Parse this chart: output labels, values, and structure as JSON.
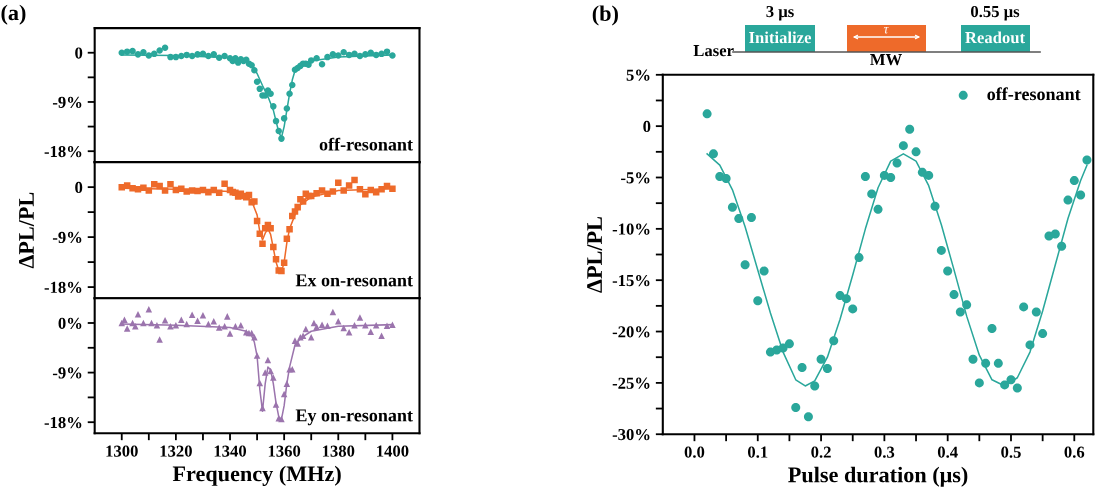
{
  "chart_data": [
    {
      "type": "scatter",
      "title": "(a)",
      "annotations": [
        "off-resonant"
      ],
      "xlim": [
        1290,
        1410
      ],
      "ylim": [
        -20,
        4.5
      ],
      "tick_labels": "y",
      "xticks": [
        1300,
        {
          "value": 1310,
          "label": null
        },
        1320,
        {
          "value": 1330,
          "label": null
        },
        1340,
        {
          "value": 1350,
          "label": null
        },
        1360,
        {
          "value": 1370,
          "label": null
        },
        1380,
        {
          "value": 1390,
          "label": null
        },
        1400
      ],
      "yticks": [
        0,
        {
          "value": -4.5,
          "label": null
        },
        {
          "value": -9,
          "label": "-9%"
        },
        {
          "value": -13.5,
          "label": null
        },
        {
          "value": -18,
          "label": "-18%"
        }
      ],
      "series": [
        {
          "marker": "circle",
          "color": "#2aa79b",
          "x": [
            1300,
            1302,
            1304,
            1306,
            1308,
            1310,
            1312,
            1314,
            1316,
            1318,
            1320,
            1322,
            1324,
            1326,
            1328,
            1330,
            1332,
            1334,
            1336,
            1338,
            1340,
            1341,
            1342,
            1343,
            1344,
            1345,
            1346,
            1347,
            1348,
            1349,
            1350,
            1351,
            1352,
            1353,
            1354,
            1355,
            1356,
            1357,
            1358,
            1359,
            1360,
            1361,
            1362,
            1363,
            1364,
            1365,
            1366,
            1367,
            1368,
            1369,
            1370,
            1372,
            1374,
            1376,
            1378,
            1380,
            1382,
            1384,
            1386,
            1388,
            1390,
            1392,
            1394,
            1396,
            1398,
            1400
          ],
          "values": [
            0,
            0.2,
            0.3,
            -0.3,
            0.1,
            -0.5,
            -0.2,
            0.4,
            0.9,
            -0.8,
            -0.8,
            -0.6,
            -0.4,
            -0.6,
            -0.3,
            -0.2,
            -0.6,
            -0.3,
            -0.9,
            -0.6,
            -1.0,
            -1.5,
            -1.0,
            -1.8,
            -1.2,
            -1.5,
            -1.3,
            -2.0,
            -2.3,
            -3.2,
            -5.3,
            -6.6,
            -7.8,
            -7.8,
            -6.9,
            -7.5,
            -9.8,
            -12.5,
            -14.3,
            -15.7,
            -12.0,
            -10.2,
            -7.5,
            -5.9,
            -3.1,
            -2.8,
            -2.4,
            -2.0,
            -2.0,
            -2.2,
            -1.4,
            -1.0,
            -2.1,
            -0.8,
            -0.3,
            -0.5,
            0.1,
            -0.4,
            -0.2,
            -0.6,
            -0.3,
            0,
            -0.4,
            -0.2,
            0.2,
            -0.5
          ]
        },
        {
          "type": "line",
          "marker": "none",
          "line_style": "solid",
          "color": "#2aa79b",
          "x": [
            1300,
            1320,
            1340,
            1345,
            1348,
            1350,
            1352,
            1354,
            1356,
            1357,
            1358,
            1359,
            1360,
            1361,
            1362,
            1363,
            1364,
            1366,
            1370,
            1380,
            1400
          ],
          "values": [
            -0.4,
            -0.5,
            -0.9,
            -1.5,
            -2.3,
            -3.8,
            -6,
            -8,
            -10.5,
            -12.5,
            -14.5,
            -15.5,
            -13.5,
            -10.5,
            -7.5,
            -5,
            -3.3,
            -2.3,
            -1.5,
            -0.8,
            -0.4
          ]
        }
      ]
    },
    {
      "type": "scatter",
      "ylabel": "ΔPL/PL",
      "annotations": [
        "Ex on-resonant"
      ],
      "xlim": [
        1290,
        1410
      ],
      "ylim": [
        -20,
        4.5
      ],
      "tick_labels": "y",
      "xticks": [
        1300,
        {
          "value": 1310,
          "label": null
        },
        1320,
        {
          "value": 1330,
          "label": null
        },
        1340,
        {
          "value": 1350,
          "label": null
        },
        1360,
        {
          "value": 1370,
          "label": null
        },
        1380,
        {
          "value": 1390,
          "label": null
        },
        1400
      ],
      "yticks": [
        0,
        {
          "value": -4.5,
          "label": null
        },
        {
          "value": -9,
          "label": "-9%"
        },
        {
          "value": -13.5,
          "label": null
        },
        {
          "value": -18,
          "label": "-18%"
        }
      ],
      "series": [
        {
          "marker": "square",
          "color": "#ee6a2a",
          "x": [
            1300,
            1302,
            1304,
            1306,
            1308,
            1310,
            1312,
            1314,
            1316,
            1318,
            1320,
            1322,
            1324,
            1326,
            1328,
            1330,
            1332,
            1334,
            1336,
            1338,
            1340,
            1341,
            1342,
            1343,
            1344,
            1345,
            1346,
            1347,
            1348,
            1349,
            1350,
            1351,
            1352,
            1353,
            1354,
            1355,
            1356,
            1357,
            1358,
            1359,
            1360,
            1361,
            1362,
            1363,
            1364,
            1365,
            1366,
            1367,
            1368,
            1369,
            1370,
            1372,
            1374,
            1376,
            1378,
            1380,
            1382,
            1384,
            1386,
            1388,
            1390,
            1392,
            1394,
            1396,
            1398,
            1400
          ],
          "values": [
            0,
            0.3,
            -0.2,
            -0.4,
            -0.1,
            -0.6,
            0.5,
            0.2,
            -0.6,
            0.5,
            -0.5,
            -0.3,
            -0.8,
            -0.6,
            -0.7,
            -0.5,
            -0.9,
            -0.5,
            -1.0,
            0.6,
            -0.5,
            -0.9,
            -1.0,
            -1.7,
            -1.2,
            -1.6,
            -1.8,
            -1.4,
            -2.7,
            -2.6,
            -6.1,
            -8.4,
            -10.2,
            -7.4,
            -6.8,
            -7.4,
            -10.8,
            -13.0,
            -15.0,
            -15.1,
            -13.6,
            -9.3,
            -7.6,
            -5.2,
            -4.4,
            -3.6,
            -2.2,
            -2.6,
            -1.2,
            -1.6,
            -1.6,
            -1.1,
            -0.6,
            -1.2,
            -0.8,
            0.8,
            -0.6,
            0.3,
            1.3,
            -0.4,
            -1.3,
            -0.5,
            -0.9,
            -0.4,
            0.2,
            -0.3
          ]
        },
        {
          "type": "line",
          "marker": "none",
          "line_style": "solid",
          "color": "#ee6a2a",
          "x": [
            1300,
            1320,
            1340,
            1346,
            1348,
            1350,
            1351,
            1352,
            1353,
            1354,
            1355,
            1356,
            1357,
            1358,
            1359,
            1360,
            1361,
            1362,
            1364,
            1366,
            1370,
            1380,
            1400
          ],
          "values": [
            -0.2,
            -0.4,
            -0.8,
            -1.5,
            -2.5,
            -5,
            -8,
            -9.5,
            -8.3,
            -7.5,
            -8.5,
            -11,
            -13.5,
            -15,
            -15.3,
            -13.5,
            -10,
            -7.5,
            -5,
            -3.2,
            -1.8,
            -0.6,
            -0.3
          ]
        }
      ]
    },
    {
      "type": "scatter",
      "xlabel": "Frequency (MHz)",
      "annotations": [
        "Ey on-resonant"
      ],
      "xlim": [
        1290,
        1410
      ],
      "ylim": [
        -20,
        4.5
      ],
      "xticks": [
        1300,
        {
          "value": 1310,
          "label": null
        },
        1320,
        {
          "value": 1330,
          "label": null
        },
        1340,
        {
          "value": 1350,
          "label": null
        },
        1360,
        {
          "value": 1370,
          "label": null
        },
        1380,
        {
          "value": 1390,
          "label": null
        },
        1400
      ],
      "yticks": [
        {
          "value": 0,
          "label": "0%"
        },
        {
          "value": -4.5,
          "label": null
        },
        {
          "value": -9,
          "label": "-9%"
        },
        {
          "value": -13.5,
          "label": null
        },
        {
          "value": -18,
          "label": "-18%"
        }
      ],
      "series": [
        {
          "marker": "triangle",
          "color": "#9b74ad",
          "x": [
            1300,
            1301,
            1302,
            1304,
            1305,
            1306,
            1308,
            1310,
            1311,
            1313,
            1314,
            1316,
            1318,
            1320,
            1322,
            1324,
            1326,
            1328,
            1330,
            1332,
            1334,
            1336,
            1338,
            1339,
            1340,
            1342,
            1344,
            1346,
            1347,
            1348,
            1349,
            1350,
            1351,
            1352,
            1353,
            1354,
            1355,
            1356,
            1357,
            1358,
            1359,
            1360,
            1361,
            1362,
            1363,
            1364,
            1365,
            1366,
            1367,
            1368,
            1370,
            1371,
            1372,
            1374,
            1376,
            1378,
            1380,
            1382,
            1384,
            1386,
            1388,
            1390,
            1392,
            1394,
            1396,
            1398,
            1400
          ],
          "values": [
            0,
            0.6,
            -1.0,
            0,
            -0.6,
            1.6,
            0,
            2.5,
            0,
            -0.4,
            -3.0,
            0.5,
            -0.6,
            -0.4,
            0.6,
            -0.2,
            1.5,
            0.4,
            1.4,
            -0.2,
            0.3,
            -0.8,
            -0.6,
            1.2,
            -1.9,
            -0.6,
            -0.4,
            -1.7,
            -1.8,
            -1.8,
            -2.6,
            -5.9,
            -10.9,
            -15.4,
            -9.0,
            -6.7,
            -8.7,
            -9.9,
            -14.8,
            -17.3,
            -17.4,
            -12.9,
            -11.0,
            -8.4,
            -8.4,
            -3.2,
            -3.7,
            -2.6,
            -2.3,
            -1.1,
            -2.6,
            0,
            -0.7,
            -0.3,
            -0.5,
            2.0,
            0.3,
            -0.9,
            -1.7,
            -0.4,
            1.0,
            -0.4,
            -1.6,
            -0.4,
            -2.3,
            -0.5,
            -0.3
          ]
        },
        {
          "type": "line",
          "marker": "none",
          "line_style": "solid",
          "color": "#9b74ad",
          "x": [
            1300,
            1320,
            1340,
            1346,
            1348,
            1349,
            1350,
            1351,
            1352,
            1353,
            1354,
            1355,
            1356,
            1357,
            1358,
            1359,
            1360,
            1361,
            1362,
            1364,
            1366,
            1370,
            1380,
            1400
          ],
          "values": [
            -0.2,
            -0.4,
            -0.8,
            -1.5,
            -2.3,
            -3.5,
            -6,
            -12,
            -16,
            -11,
            -8,
            -8.5,
            -11,
            -14.5,
            -17,
            -17.5,
            -15,
            -11,
            -8,
            -4,
            -2.8,
            -1.5,
            -0.6,
            -0.3
          ]
        }
      ]
    },
    {
      "type": "scatter",
      "title": "(b)",
      "xlabel": "Pulse duration (μs)",
      "ylabel": "ΔPL/PL",
      "legend": "top right",
      "xlim": [
        -0.05,
        0.63
      ],
      "ylim": [
        -30,
        5
      ],
      "annotations": [
        "3 μs",
        "Initialize",
        "τ",
        "0.55 μs",
        "Readout",
        "Laser",
        "MW"
      ],
      "xticks": [
        {
          "value": 0,
          "label": "0.0"
        },
        {
          "value": 0.05,
          "label": null
        },
        0.1,
        {
          "value": 0.15,
          "label": null
        },
        0.2,
        {
          "value": 0.25,
          "label": null
        },
        0.3,
        {
          "value": 0.35,
          "label": null
        },
        0.4,
        {
          "value": 0.45,
          "label": null
        },
        0.5,
        {
          "value": 0.55,
          "label": null
        },
        0.6
      ],
      "yticks": [
        {
          "value": 5,
          "label": "5%"
        },
        {
          "value": 2.5,
          "label": null
        },
        0,
        {
          "value": -2.5,
          "label": null
        },
        {
          "value": -5,
          "label": "-5%"
        },
        {
          "value": -7.5,
          "label": null
        },
        {
          "value": -10,
          "label": "-10%"
        },
        {
          "value": -12.5,
          "label": null
        },
        {
          "value": -15,
          "label": "-15%"
        },
        {
          "value": -17.5,
          "label": null
        },
        {
          "value": -20,
          "label": "-20%"
        },
        {
          "value": -22.5,
          "label": null
        },
        {
          "value": -25,
          "label": "-25%"
        },
        {
          "value": -27.5,
          "label": null
        },
        {
          "value": -30,
          "label": "-30%"
        }
      ],
      "series": [
        {
          "name": "off-resonant",
          "marker": "circle",
          "color": "#2aa79b",
          "x": [
            0.02,
            0.03,
            0.04,
            0.05,
            0.06,
            0.07,
            0.08,
            0.09,
            0.1,
            0.11,
            0.12,
            0.13,
            0.14,
            0.15,
            0.16,
            0.17,
            0.18,
            0.19,
            0.2,
            0.21,
            0.22,
            0.23,
            0.24,
            0.25,
            0.26,
            0.27,
            0.28,
            0.29,
            0.3,
            0.31,
            0.32,
            0.33,
            0.34,
            0.35,
            0.36,
            0.37,
            0.38,
            0.39,
            0.4,
            0.41,
            0.42,
            0.43,
            0.44,
            0.45,
            0.46,
            0.47,
            0.48,
            0.49,
            0.5,
            0.51,
            0.52,
            0.53,
            0.54,
            0.55,
            0.56,
            0.57,
            0.58,
            0.59,
            0.6,
            0.61,
            0.62
          ],
          "values": [
            1.2,
            -2.7,
            -4.9,
            -5.1,
            -7.9,
            -9.0,
            -13.5,
            -8.9,
            -17.0,
            -14.1,
            -22.0,
            -21.8,
            -21.6,
            -21.2,
            -27.4,
            -23.5,
            -28.3,
            -25.3,
            -22.7,
            -23.6,
            -20.9,
            -16.5,
            -16.8,
            -17.8,
            -12.8,
            -4.9,
            -6.6,
            -8.1,
            -4.8,
            -5.0,
            -3.6,
            -1.9,
            -0.3,
            -2.5,
            -4.5,
            -4.8,
            -7.8,
            -12.1,
            -14.1,
            -16.4,
            -18.1,
            -17.4,
            -22.7,
            -25.0,
            -23.1,
            -19.7,
            -23.1,
            -25.2,
            -24.7,
            -25.5,
            -17.6,
            -21.3,
            -18.1,
            -20.2,
            -10.7,
            -10.5,
            -11.7,
            -7.2,
            -5.3,
            -6.7,
            -3.3
          ]
        },
        {
          "type": "line",
          "marker": "none",
          "line_style": "solid",
          "color": "#2aa79b",
          "x": [
            0.02,
            0.04,
            0.06,
            0.08,
            0.1,
            0.12,
            0.14,
            0.16,
            0.175,
            0.19,
            0.21,
            0.23,
            0.25,
            0.27,
            0.29,
            0.31,
            0.33,
            0.35,
            0.37,
            0.39,
            0.41,
            0.43,
            0.45,
            0.47,
            0.49,
            0.51,
            0.53,
            0.55,
            0.57,
            0.59,
            0.61,
            0.62
          ],
          "values": [
            -2.7,
            -3.8,
            -6.2,
            -9.8,
            -14,
            -18.2,
            -22,
            -24.7,
            -25.3,
            -24.8,
            -22.5,
            -18.8,
            -14.5,
            -10,
            -6,
            -3.4,
            -2.7,
            -3.4,
            -5.8,
            -9.6,
            -14,
            -18.5,
            -22.3,
            -24.7,
            -25.3,
            -24.5,
            -22,
            -18,
            -13.5,
            -9,
            -5.3,
            -3.8
          ]
        }
      ]
    }
  ]
}
